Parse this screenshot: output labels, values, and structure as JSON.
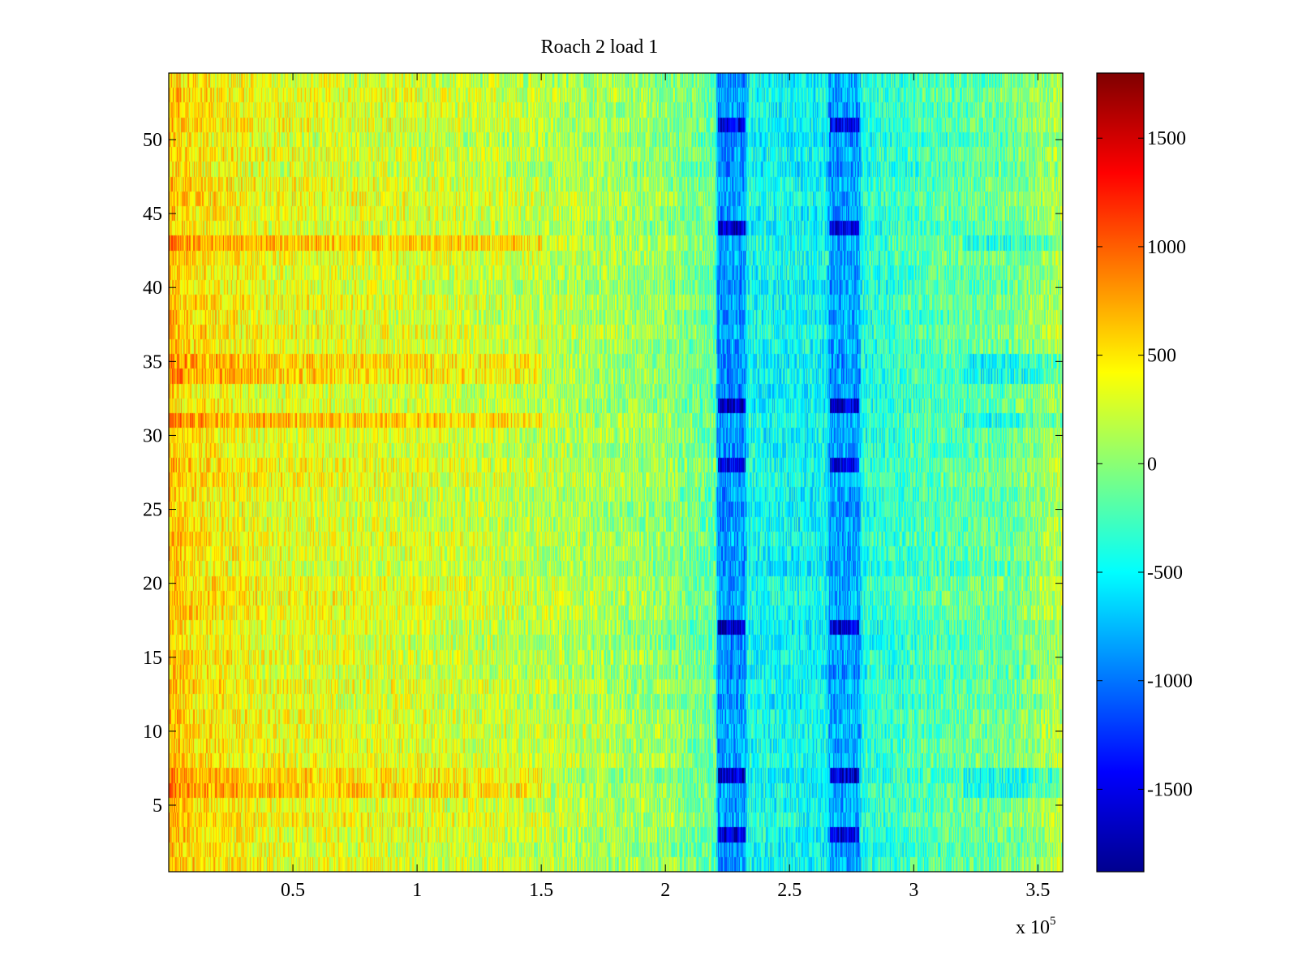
{
  "chart_data": {
    "type": "heatmap",
    "title": "Roach 2 load 1",
    "xlabel": "",
    "ylabel": "",
    "x_multiplier_label": "x 10",
    "x_multiplier_exponent": "5",
    "xlim": [
      0,
      360000
    ],
    "ylim": [
      0.5,
      54.5
    ],
    "x_ticks": [
      {
        "value": 50000,
        "label": "0.5"
      },
      {
        "value": 100000,
        "label": "1"
      },
      {
        "value": 150000,
        "label": "1.5"
      },
      {
        "value": 200000,
        "label": "2"
      },
      {
        "value": 250000,
        "label": "2.5"
      },
      {
        "value": 300000,
        "label": "3"
      },
      {
        "value": 350000,
        "label": "3.5"
      }
    ],
    "y_ticks": [
      {
        "value": 5,
        "label": "5"
      },
      {
        "value": 10,
        "label": "10"
      },
      {
        "value": 15,
        "label": "15"
      },
      {
        "value": 20,
        "label": "20"
      },
      {
        "value": 25,
        "label": "25"
      },
      {
        "value": 30,
        "label": "30"
      },
      {
        "value": 35,
        "label": "35"
      },
      {
        "value": 40,
        "label": "40"
      },
      {
        "value": 45,
        "label": "45"
      },
      {
        "value": 50,
        "label": "50"
      }
    ],
    "rows": 54,
    "colormap": "jet",
    "clim": [
      -1880,
      1800
    ],
    "colorbar": {
      "ticks": [
        {
          "value": 1500,
          "label": "1500"
        },
        {
          "value": 1000,
          "label": "1000"
        },
        {
          "value": 500,
          "label": "500"
        },
        {
          "value": 0,
          "label": "0"
        },
        {
          "value": -500,
          "label": "-500"
        },
        {
          "value": -1000,
          "label": "-1000"
        },
        {
          "value": -1500,
          "label": "-1500"
        }
      ]
    },
    "column_profile": [
      {
        "x": 0,
        "value": 650
      },
      {
        "x": 10000,
        "value": 500
      },
      {
        "x": 40000,
        "value": 350
      },
      {
        "x": 100000,
        "value": 280
      },
      {
        "x": 150000,
        "value": 180
      },
      {
        "x": 200000,
        "value": 30
      },
      {
        "x": 220000,
        "value": -150
      },
      {
        "x": 221000,
        "value": -900
      },
      {
        "x": 232000,
        "value": -850
      },
      {
        "x": 233000,
        "value": -450
      },
      {
        "x": 265000,
        "value": -500
      },
      {
        "x": 266000,
        "value": -850
      },
      {
        "x": 278000,
        "value": -800
      },
      {
        "x": 279000,
        "value": -400
      },
      {
        "x": 310000,
        "value": -200
      },
      {
        "x": 340000,
        "value": -100
      },
      {
        "x": 360000,
        "value": 150
      }
    ],
    "dark_rows": [
      3,
      7,
      17,
      28,
      32,
      44,
      51
    ],
    "warm_rows": [
      6,
      7,
      31,
      34,
      35,
      43
    ]
  }
}
